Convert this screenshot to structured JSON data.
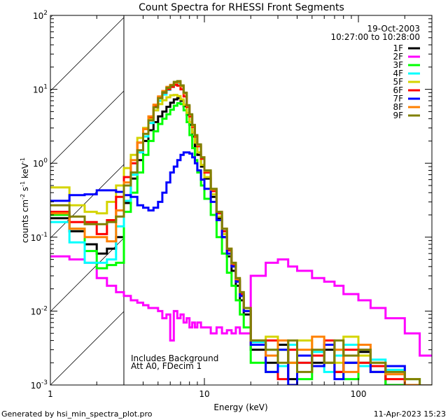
{
  "chart_data": {
    "type": "line",
    "title": "Count Spectra for RHESSI Front Segments",
    "xlabel": "Energy (keV)",
    "ylabel_parts": [
      "counts cm",
      "-2",
      " s",
      "-1",
      " keV",
      "-1"
    ],
    "xscale": "log",
    "yscale": "log",
    "xlim": [
      1,
      300
    ],
    "ylim": [
      0.001,
      100
    ],
    "x_tick_labels": [
      "1",
      "10",
      "100"
    ],
    "y_tick_labels": [
      {
        "base": "10",
        "exp": "-3",
        "value": 0.001
      },
      {
        "base": "10",
        "exp": "-2",
        "value": 0.01
      },
      {
        "base": "10",
        "exp": "-1",
        "value": 0.1
      },
      {
        "base": "10",
        "exp": "0",
        "value": 1
      },
      {
        "base": "10",
        "exp": "1",
        "value": 10
      },
      {
        "base": "10",
        "exp": "2",
        "value": 100
      }
    ],
    "hatched_region_keV": [
      1,
      3
    ],
    "date": "19-Oct-2003",
    "time_range": "10:27:00 to 10:28:00",
    "annotations": [
      "Includes Background",
      "Att A0, FDecim 1"
    ],
    "legend_position": "top-right",
    "energy_bin_edges": [
      1,
      1.33,
      1.67,
      2,
      2.33,
      2.67,
      3,
      3.33,
      3.67,
      4,
      4.33,
      4.67,
      5,
      5.33,
      5.67,
      6,
      6.33,
      6.67,
      7,
      7.33,
      7.67,
      8,
      8.33,
      8.67,
      9,
      9.5,
      10,
      11,
      12,
      13,
      14,
      15,
      16,
      17,
      18,
      20,
      25,
      30,
      35,
      40,
      50,
      60,
      70,
      80,
      100,
      120,
      150,
      200,
      250,
      300
    ],
    "series": [
      {
        "name": "1F",
        "color": "#000000",
        "values": [
          0.18,
          0.12,
          0.08,
          0.06,
          0.07,
          0.1,
          0.29,
          0.62,
          1.1,
          2.0,
          2.8,
          3.6,
          4.3,
          5.0,
          5.8,
          6.6,
          7.3,
          7.6,
          7,
          5.9,
          4.5,
          3.3,
          2.3,
          1.7,
          1.3,
          0.9,
          0.62,
          0.35,
          0.18,
          0.1,
          0.055,
          0.035,
          0.022,
          0.014,
          0.009,
          0.003,
          0.002,
          0.0035,
          0.0012,
          0.0025,
          0.002,
          0.003,
          0.0015,
          0.002,
          0.0028,
          0.0015,
          0.001,
          0.0008,
          0.0006
        ]
      },
      {
        "name": "2F",
        "color": "#ff00ff",
        "values": [
          0.055,
          0.05,
          0.045,
          0.028,
          0.022,
          0.018,
          0.016,
          0.014,
          0.013,
          0.012,
          0.011,
          0.011,
          0.01,
          0.008,
          0.009,
          0.004,
          0.01,
          0.008,
          0.009,
          0.007,
          0.008,
          0.006,
          0.007,
          0.006,
          0.007,
          0.006,
          0.006,
          0.005,
          0.006,
          0.005,
          0.0055,
          0.005,
          0.006,
          0.005,
          0.005,
          0.03,
          0.045,
          0.05,
          0.04,
          0.035,
          0.028,
          0.025,
          0.022,
          0.017,
          0.014,
          0.011,
          0.008,
          0.005,
          0.0025
        ]
      },
      {
        "name": "3F",
        "color": "#00ff00",
        "values": [
          0.2,
          0.13,
          0.065,
          0.038,
          0.042,
          0.045,
          0.22,
          0.4,
          0.75,
          1.3,
          2.0,
          2.7,
          3.4,
          4.0,
          4.6,
          5.3,
          6.0,
          6.5,
          6.3,
          5.2,
          3.6,
          2.4,
          1.6,
          1.1,
          0.75,
          0.5,
          0.33,
          0.2,
          0.1,
          0.06,
          0.033,
          0.022,
          0.014,
          0.009,
          0.006,
          0.002,
          0.0015,
          0.003,
          0.002,
          0.0012,
          0.0025,
          0.002,
          0.003,
          0.0012,
          0.002,
          0.0018,
          0.001,
          0.0009,
          0.0005
        ]
      },
      {
        "name": "4F",
        "color": "#00ffff",
        "values": [
          0.16,
          0.085,
          0.045,
          0.045,
          0.05,
          0.14,
          0.31,
          0.7,
          1.4,
          2.3,
          3.5,
          5.2,
          7.0,
          8.5,
          9.8,
          10.8,
          11.8,
          12.2,
          11,
          8.8,
          6,
          4.5,
          3.2,
          2.3,
          1.7,
          1.15,
          0.76,
          0.42,
          0.21,
          0.12,
          0.066,
          0.042,
          0.026,
          0.017,
          0.01,
          0.0038,
          0.003,
          0.0018,
          0.0035,
          0.002,
          0.0028,
          0.0015,
          0.0025,
          0.0035,
          0.0018,
          0.0022,
          0.0016,
          0.0012,
          0.0008
        ]
      },
      {
        "name": "5F",
        "color": "#d4d400",
        "values": [
          0.47,
          0.27,
          0.22,
          0.21,
          0.3,
          0.5,
          0.86,
          1.3,
          2.2,
          3.0,
          4.0,
          5.2,
          6.3,
          7.1,
          7.8,
          8.3,
          8.4,
          8.1,
          7.3,
          6.2,
          4.8,
          3.6,
          2.6,
          1.9,
          1.4,
          0.95,
          0.65,
          0.38,
          0.19,
          0.11,
          0.06,
          0.04,
          0.025,
          0.016,
          0.01,
          0.0035,
          0.0045,
          0.003,
          0.002,
          0.004,
          0.0025,
          0.0035,
          0.002,
          0.0045,
          0.0025,
          0.0015,
          0.0018,
          0.0012,
          0.0008
        ]
      },
      {
        "name": "6F",
        "color": "#ff0000",
        "values": [
          0.22,
          0.16,
          0.16,
          0.11,
          0.17,
          0.35,
          0.65,
          1.0,
          1.9,
          2.9,
          4.2,
          6.0,
          7.8,
          9.0,
          10,
          10.8,
          11.5,
          11.2,
          10,
          8,
          5.8,
          4.3,
          3.1,
          2.3,
          1.7,
          1.15,
          0.75,
          0.42,
          0.21,
          0.12,
          0.066,
          0.042,
          0.026,
          0.017,
          0.01,
          0.0035,
          0.004,
          0.0012,
          0.003,
          0.002,
          0.0025,
          0.004,
          0.0015,
          0.003,
          0.002,
          0.0018,
          0.0012,
          0.0009,
          0.0006
        ]
      },
      {
        "name": "7F",
        "color": "#0000ff",
        "values": [
          0.31,
          0.37,
          0.38,
          0.43,
          0.43,
          0.41,
          0.37,
          0.35,
          0.27,
          0.25,
          0.23,
          0.25,
          0.3,
          0.4,
          0.55,
          0.75,
          0.9,
          1.1,
          1.3,
          1.4,
          1.4,
          1.35,
          1.2,
          1.0,
          0.8,
          0.6,
          0.45,
          0.3,
          0.17,
          0.1,
          0.06,
          0.04,
          0.025,
          0.016,
          0.01,
          0.0035,
          0.0015,
          0.003,
          0.001,
          0.0025,
          0.0018,
          0.0035,
          0.0012,
          0.002,
          0.003,
          0.0015,
          0.0018,
          0.001,
          0.0007
        ]
      },
      {
        "name": "8F",
        "color": "#ff8000",
        "values": [
          0.21,
          0.13,
          0.1,
          0.1,
          0.088,
          0.23,
          0.55,
          1.1,
          1.9,
          2.9,
          4.3,
          6.2,
          8,
          9.5,
          10.8,
          11.5,
          12.3,
          12.5,
          11,
          8.8,
          6,
          4.5,
          3.2,
          2.35,
          1.75,
          1.2,
          0.78,
          0.44,
          0.22,
          0.13,
          0.07,
          0.044,
          0.027,
          0.018,
          0.011,
          0.004,
          0.0025,
          0.004,
          0.002,
          0.003,
          0.0045,
          0.002,
          0.003,
          0.0015,
          0.0035,
          0.002,
          0.0014,
          0.001,
          0.0007
        ]
      },
      {
        "name": "9F",
        "color": "#808000",
        "values": [
          0.27,
          0.19,
          0.15,
          0.15,
          0.16,
          0.19,
          0.5,
          0.75,
          1.5,
          2.5,
          3.8,
          5.7,
          7.6,
          9.1,
          10.5,
          11.3,
          12.6,
          12.9,
          11.3,
          9,
          6.1,
          4.6,
          3.3,
          2.4,
          1.8,
          1.2,
          0.8,
          0.45,
          0.22,
          0.13,
          0.07,
          0.045,
          0.028,
          0.018,
          0.011,
          0.004,
          0.003,
          0.002,
          0.004,
          0.0015,
          0.003,
          0.002,
          0.004,
          0.0025,
          0.003,
          0.002,
          0.0015,
          0.0012,
          0.0008
        ]
      }
    ]
  },
  "footer": {
    "generated_by": "Generated by hsi_min_spectra_plot.pro",
    "timestamp": "11-Apr-2023 15:23"
  }
}
